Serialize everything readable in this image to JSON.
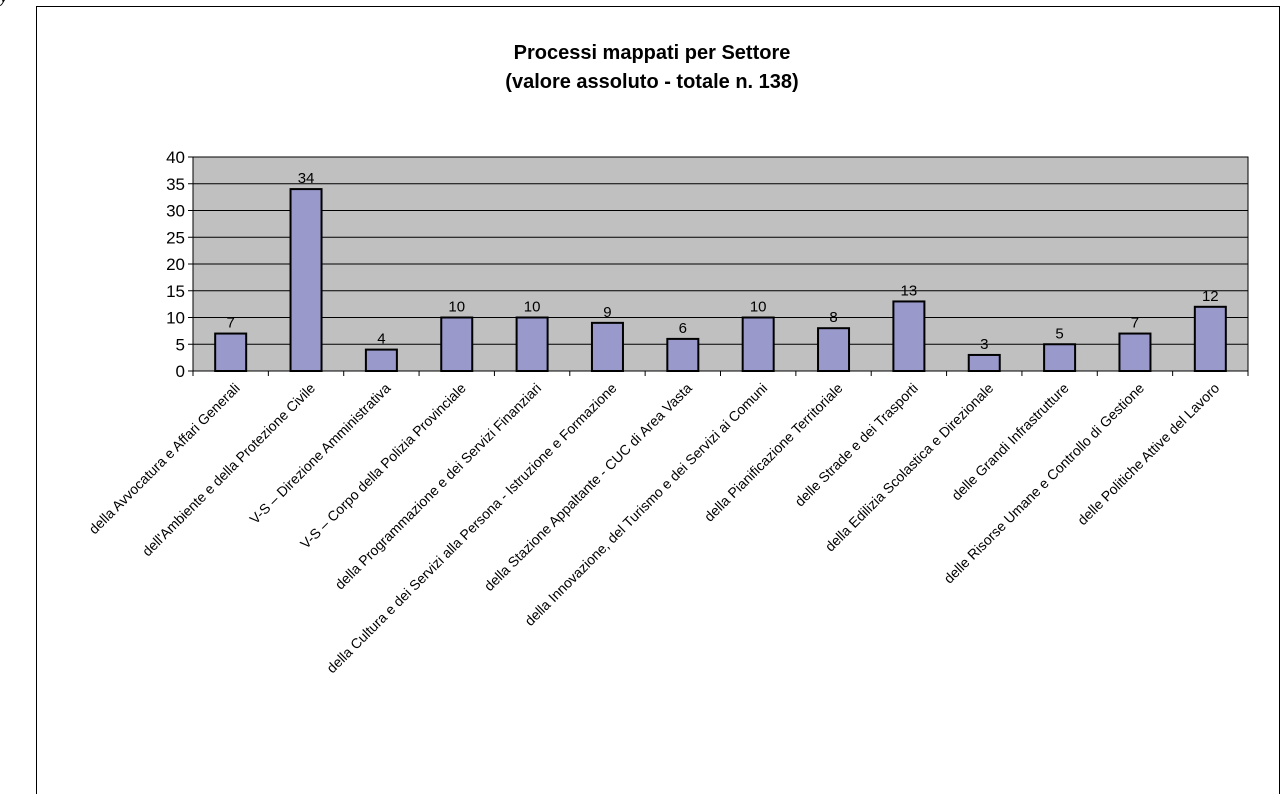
{
  "page": {
    "corner_mark": "y"
  },
  "chart_data": {
    "type": "bar",
    "title": "Processi mappati per Settore",
    "subtitle": "(valore assoluto - totale n. 138)",
    "ylim": [
      0,
      40
    ],
    "yticks": [
      0,
      5,
      10,
      15,
      20,
      25,
      30,
      35,
      40
    ],
    "grid": true,
    "legend": "none",
    "colors": {
      "plot_bg": "#c0c0c0",
      "bar": "#9999cc",
      "bar_border": "#000000",
      "grid": "#000000"
    },
    "categories": [
      "della Avvocatura e Affari Generali",
      "dell'Ambiente e della Protezione Civile",
      "V-S – Direzione Amministrativa",
      "V-S – Corpo della Polizia Provinciale",
      "della Programmazione e dei Servizi Finanziari",
      "della Cultura e dei Servizi alla Persona - Istruzione e Formazione",
      "della Stazione Appaltante - CUC di Area Vasta",
      "della Innovazione, del Turismo e dei Servizi ai Comuni",
      "della Pianificazione Territoriale",
      "delle Strade e dei Trasporti",
      "della Edilizia Scolastica e Direzionale",
      "delle Grandi Infrastrutture",
      "delle Risorse Umane e Controllo di Gestione",
      "delle Politiche Attive del Lavoro"
    ],
    "values": [
      7,
      34,
      4,
      10,
      10,
      9,
      6,
      10,
      8,
      13,
      3,
      5,
      7,
      12
    ]
  }
}
